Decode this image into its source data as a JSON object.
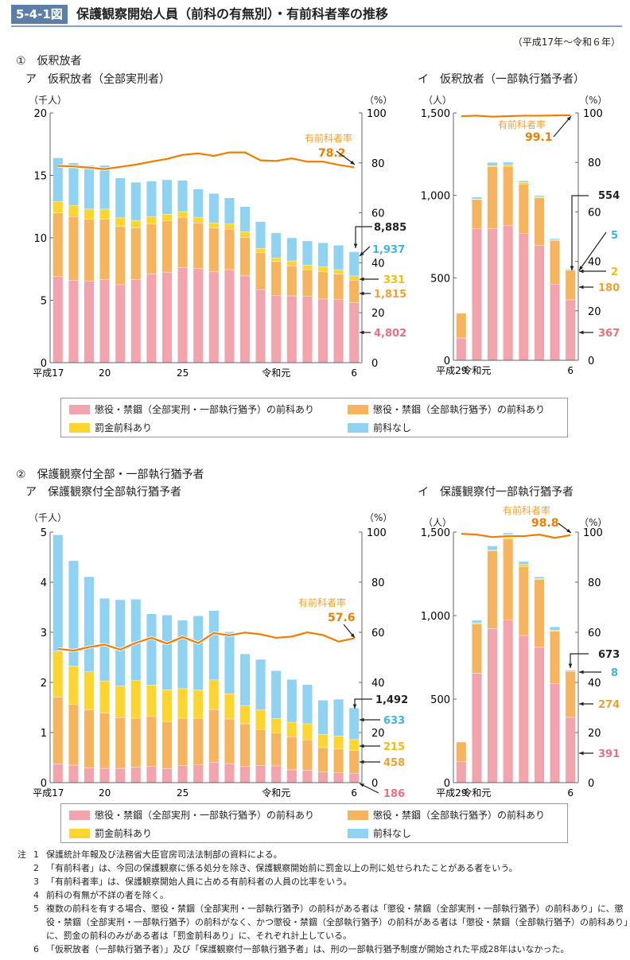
{
  "header": {
    "badge": "5-4-1図",
    "title": "保護観察開始人員（前科の有無別）・有前科者率の推移",
    "period": "（平成17年～令和６年）"
  },
  "colors": {
    "pink": "#f2a3ab",
    "orange": "#f6b45e",
    "yellow": "#fcd530",
    "blue": "#8fd2f2",
    "line": "#ee7d00",
    "pink_text": "#e8707f",
    "orange_text": "#f0a030",
    "yellow_text": "#f0c000",
    "blue_text": "#3ab4e6"
  },
  "section1": {
    "title": "①　仮釈放者",
    "sub_a": "ア　仮釈放者（全部実刑者）",
    "sub_b": "イ　仮釈放者（一部執行猶予者）"
  },
  "section2": {
    "title": "②　保護観察付全部・一部執行猶予者",
    "sub_a": "ア　保護観察付全部執行猶予者",
    "sub_b": "イ　保護観察付一部執行猶予者"
  },
  "legend": {
    "items": [
      {
        "label": "懲役・禁錮（全部実刑・一部執行猶予）の前科あり",
        "color": "#f2a3ab"
      },
      {
        "label": "懲役・禁錮（全部執行猶予）の前科あり",
        "color": "#f6b45e"
      },
      {
        "label": "罰金前科あり",
        "color": "#fcd530"
      },
      {
        "label": "前科なし",
        "color": "#8fd2f2"
      }
    ]
  },
  "chart_data": [
    {
      "type": "bar",
      "stacked": true,
      "id": "1a",
      "ylabel": "（千人）",
      "y2label": "（%）",
      "ylim": [
        0,
        20
      ],
      "y2lim": [
        0,
        100
      ],
      "yticks": [
        "0",
        "5",
        "10",
        "15",
        "20"
      ],
      "y2ticks": [
        "0",
        "20",
        "40",
        "60",
        "80",
        "100"
      ],
      "categories": [
        "平成17",
        "18",
        "19",
        "20",
        "21",
        "22",
        "23",
        "24",
        "25",
        "26",
        "27",
        "28",
        "29",
        "30",
        "令和元",
        "2",
        "3",
        "4",
        "5",
        "6"
      ],
      "xtick_labels": {
        "0": "平成17",
        "3": "20",
        "8": "25",
        "14": "令和元",
        "19": "6"
      },
      "series": [
        {
          "name": "懲役・禁錮（全部実刑・一部執行猶予）の前科あり",
          "values": [
            6.9,
            6.6,
            6.55,
            6.65,
            6.25,
            6.65,
            7.1,
            7.25,
            7.6,
            7.55,
            7.3,
            7.45,
            6.95,
            5.85,
            5.4,
            5.35,
            5.3,
            5.1,
            5.05,
            4.802
          ]
        },
        {
          "name": "懲役・禁錮（全部執行猶予）の前科あり",
          "values": [
            5.1,
            5.1,
            4.95,
            4.85,
            4.65,
            4.15,
            4.0,
            4.1,
            4.05,
            3.65,
            3.5,
            3.25,
            3.1,
            2.95,
            2.7,
            2.4,
            2.15,
            2.2,
            2.05,
            1.815
          ]
        },
        {
          "name": "罰金前科あり",
          "values": [
            0.9,
            0.9,
            0.8,
            0.8,
            0.7,
            0.6,
            0.6,
            0.55,
            0.45,
            0.45,
            0.4,
            0.4,
            0.45,
            0.35,
            0.3,
            0.4,
            0.35,
            0.4,
            0.35,
            0.331
          ]
        },
        {
          "name": "前科なし",
          "values": [
            3.5,
            3.4,
            3.5,
            3.5,
            3.2,
            3.05,
            2.85,
            2.75,
            2.5,
            2.25,
            2.35,
            2.1,
            2.0,
            2.15,
            2.0,
            1.85,
            1.95,
            1.9,
            1.95,
            1.937
          ]
        }
      ],
      "rate": {
        "name": "有前科者率",
        "values": [
          78.8,
          78.6,
          78.1,
          77.5,
          78.4,
          79.3,
          80.5,
          81.6,
          83.2,
          83.8,
          82.8,
          84.2,
          84.2,
          81.0,
          80.8,
          81.8,
          80.5,
          80.5,
          79.2,
          78.2
        ],
        "label": "78.2"
      },
      "annotations": {
        "total": "8,885",
        "blue": "1,937",
        "yellow": "331",
        "orange": "1,815",
        "pink": "4,802"
      }
    },
    {
      "type": "bar",
      "stacked": true,
      "id": "1b",
      "ylabel": "（人）",
      "y2label": "（%）",
      "ylim": [
        0,
        1500
      ],
      "y2lim": [
        0,
        100
      ],
      "yticks": [
        "0",
        "500",
        "1,000",
        "1,500"
      ],
      "y2ticks": [
        "0",
        "20",
        "40",
        "60",
        "80",
        "100"
      ],
      "categories": [
        "平成29",
        "30",
        "令和元",
        "2",
        "3",
        "4",
        "5",
        "6"
      ],
      "xtick_labels": {
        "0": "平成29",
        "1": "令和元",
        "7": "6"
      },
      "series": [
        {
          "name": "懲役・禁錮（全部実刑・一部執行猶予）の前科あり",
          "values": [
            135,
            800,
            800,
            816,
            770,
            696,
            462,
            367
          ]
        },
        {
          "name": "懲役・禁錮（全部執行猶予）の前科あり",
          "values": [
            150,
            175,
            375,
            360,
            300,
            290,
            265,
            180
          ]
        },
        {
          "name": "罰金前科あり",
          "values": [
            0,
            3,
            5,
            10,
            8,
            5,
            3,
            2
          ]
        },
        {
          "name": "前科なし",
          "values": [
            0,
            12,
            20,
            15,
            10,
            8,
            8,
            5
          ]
        }
      ],
      "rate": {
        "name": "有前科者率",
        "values": [
          98.7,
          98.9,
          98.5,
          98.7,
          98.9,
          98.9,
          99.0,
          99.1
        ],
        "label": "99.1"
      },
      "annotations": {
        "total": "554",
        "blue": "5",
        "yellow": "2",
        "orange": "180",
        "pink": "367"
      }
    },
    {
      "type": "bar",
      "stacked": true,
      "id": "2a",
      "ylabel": "（千人）",
      "y2label": "（%）",
      "ylim": [
        0,
        5
      ],
      "y2lim": [
        0,
        100
      ],
      "yticks": [
        "0",
        "1",
        "2",
        "3",
        "4",
        "5"
      ],
      "y2ticks": [
        "0",
        "20",
        "40",
        "60",
        "80",
        "100"
      ],
      "categories": [
        "平成17",
        "18",
        "19",
        "20",
        "21",
        "22",
        "23",
        "24",
        "25",
        "26",
        "27",
        "28",
        "29",
        "30",
        "令和元",
        "2",
        "3",
        "4",
        "5",
        "6"
      ],
      "xtick_labels": {
        "0": "平成17",
        "3": "20",
        "8": "25",
        "14": "令和元",
        "19": "6"
      },
      "series": [
        {
          "name": "懲役・禁錮（全部実刑・一部執行猶予）の前科あり",
          "values": [
            0.375,
            0.35,
            0.3,
            0.285,
            0.285,
            0.31,
            0.32,
            0.28,
            0.34,
            0.36,
            0.41,
            0.38,
            0.33,
            0.34,
            0.335,
            0.255,
            0.245,
            0.21,
            0.2,
            0.186
          ]
        },
        {
          "name": "懲役・禁錮（全部執行猶予）の前科あり",
          "values": [
            1.33,
            1.21,
            1.15,
            1.105,
            1.015,
            0.975,
            1.0,
            0.94,
            0.945,
            0.925,
            1.05,
            0.89,
            0.845,
            0.72,
            0.66,
            0.66,
            0.61,
            0.49,
            0.475,
            0.458
          ]
        },
        {
          "name": "罰金前科あり",
          "values": [
            0.92,
            0.77,
            0.76,
            0.64,
            0.63,
            0.75,
            0.625,
            0.635,
            0.59,
            0.565,
            0.59,
            0.505,
            0.365,
            0.395,
            0.285,
            0.29,
            0.32,
            0.265,
            0.255,
            0.215
          ]
        },
        {
          "name": "前科なし",
          "values": [
            2.32,
            2.1,
            1.9,
            1.65,
            1.72,
            1.625,
            1.425,
            1.49,
            1.365,
            1.48,
            1.385,
            1.235,
            1.03,
            1.005,
            0.955,
            0.855,
            0.78,
            0.68,
            0.735,
            0.633
          ]
        }
      ],
      "rate": {
        "name": "有前科者率",
        "values": [
          53.4,
          52.7,
          54.1,
          55.1,
          53.1,
          55.8,
          57.8,
          55.5,
          58.1,
          55.7,
          59.7,
          58.8,
          59.9,
          59.2,
          57.8,
          58.3,
          60.0,
          58.9,
          56.3,
          57.6
        ],
        "label": "57.6"
      },
      "annotations": {
        "total": "1,492",
        "blue": "633",
        "yellow": "215",
        "orange": "458",
        "pink": "186"
      }
    },
    {
      "type": "bar",
      "stacked": true,
      "id": "2b",
      "ylabel": "（人）",
      "y2label": "（%）",
      "ylim": [
        0,
        1500
      ],
      "y2lim": [
        0,
        100
      ],
      "yticks": [
        "0",
        "500",
        "1,000",
        "1,500"
      ],
      "y2ticks": [
        "0",
        "20",
        "40",
        "60",
        "80",
        "100"
      ],
      "categories": [
        "平成29",
        "30",
        "令和元",
        "2",
        "3",
        "4",
        "5",
        "6"
      ],
      "xtick_labels": {
        "0": "平成29",
        "1": "令和元",
        "7": "6"
      },
      "series": [
        {
          "name": "懲役・禁錮（全部実刑・一部執行猶予）の前科あり",
          "values": [
            127,
            655,
            922,
            975,
            881,
            810,
            592,
            391
          ]
        },
        {
          "name": "懲役・禁錮（全部執行猶予）の前科あり",
          "values": [
            116,
            297,
            467,
            485,
            413,
            407,
            314,
            274
          ]
        },
        {
          "name": "罰金前科あり",
          "values": [
            0,
            5,
            5,
            7,
            12,
            5,
            6,
            0
          ]
        },
        {
          "name": "前科なし",
          "values": [
            0,
            15,
            23,
            28,
            18,
            10,
            21,
            8
          ]
        }
      ],
      "rate": {
        "name": "有前科者率",
        "values": [
          99.3,
          99.0,
          98.0,
          98.4,
          98.4,
          99.0,
          97.7,
          98.8
        ],
        "label": "98.8"
      },
      "annotations": {
        "total": "673",
        "blue": "8",
        "orange": "274",
        "pink": "391"
      }
    }
  ],
  "notes": {
    "prefix": "注",
    "items": [
      {
        "n": "1",
        "text": "保護統計年報及び法務省大臣官房司法法制部の資料による。"
      },
      {
        "n": "2",
        "text": "「有前科者」は、今回の保護観察に係る処分を除き、保護観察開始前に罰金以上の刑に処せられたことがある者をいう。"
      },
      {
        "n": "3",
        "text": "「有前科者率」は、保護観察開始人員に占める有前科者の人員の比率をいう。"
      },
      {
        "n": "4",
        "text": "前科の有無が不詳の者を除く。"
      },
      {
        "n": "5",
        "text": "複数の前科を有する場合、懲役・禁錮（全部実刑・一部執行猶予）の前科がある者は「懲役・禁錮（全部実刑・一部執行猶予）の前科あり」に、懲役・禁錮（全部実刑・一部執行猶予）の前科がなく、かつ懲役・禁錮（全部執行猶予）の前科がある者は「懲役・禁錮（全部執行猶予）の前科あり」に、罰金の前科のみがある者は「罰金前科あり」に、それぞれ計上している。"
      },
      {
        "n": "6",
        "text": "「仮釈放者（一部執行猶予者）」及び「保護観察付一部執行猶予者」は、刑の一部執行猶予制度が開始された平成28年はいなかった。"
      }
    ]
  }
}
